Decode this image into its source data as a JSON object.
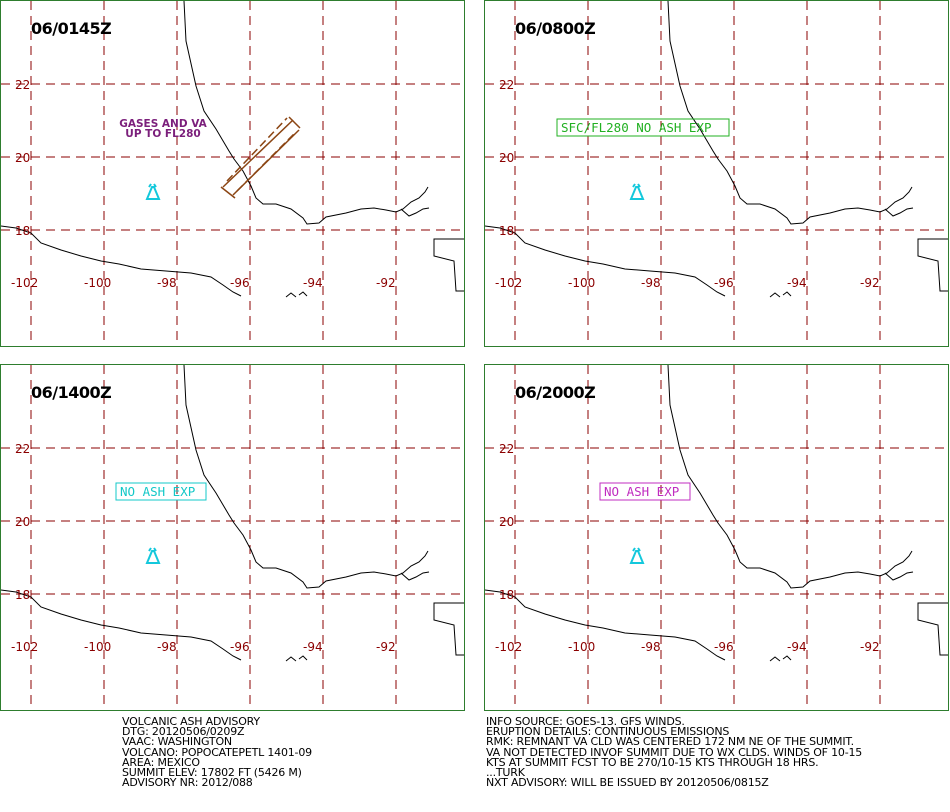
{
  "panels": [
    {
      "time": "06/0145Z",
      "label_lines": [
        "GASES AND VA",
        "UP TO FL280"
      ],
      "label_color": "#7b1f7b",
      "label_boxed": false,
      "has_ash_polygon": true
    },
    {
      "time": "06/0800Z",
      "label_lines": [
        "SFC/FL280 NO ASH EXP"
      ],
      "label_color": "#22b022",
      "label_boxed": true,
      "has_ash_polygon": false
    },
    {
      "time": "06/1400Z",
      "label_lines": [
        "NO ASH EXP"
      ],
      "label_color": "#13c8c8",
      "label_boxed": true,
      "has_ash_polygon": false
    },
    {
      "time": "06/2000Z",
      "label_lines": [
        "NO ASH EXP"
      ],
      "label_color": "#c02cc0",
      "label_boxed": true,
      "has_ash_polygon": false
    }
  ],
  "lat_labels": [
    "22",
    "20",
    "18"
  ],
  "lon_labels": [
    "-102",
    "-100",
    "-98",
    "-96",
    "-94",
    "-92"
  ],
  "colors": {
    "grid": "#8b0000",
    "coast": "#000000",
    "volcano": "#14c8dc",
    "ash": "#8b4513",
    "frame": "#2e7d2e"
  },
  "advisory_left": [
    "VOLCANIC ASH ADVISORY",
    "DTG: 20120506/0209Z",
    "VAAC: WASHINGTON",
    "VOLCANO: POPOCATEPETL 1401-09",
    "AREA: MEXICO",
    "SUMMIT ELEV: 17802 FT (5426 M)",
    "ADVISORY NR: 2012/088"
  ],
  "advisory_right": [
    "INFO SOURCE: GOES-13. GFS WINDS.",
    "ERUPTION DETAILS: CONTINUOUS EMISSIONS",
    "RMK: REMNANT VA CLD WAS CENTERED 172 NM NE OF THE SUMMIT.",
    "VA NOT DETECTED INVOF SUMMIT DUE TO WX CLDS. WINDS OF 10-15",
    "KTS AT SUMMIT FCST TO BE 270/10-15 KTS THROUGH 18 HRS.",
    "...TURK",
    "NXT ADVISORY: WILL BE ISSUED BY 20120506/0815Z"
  ]
}
